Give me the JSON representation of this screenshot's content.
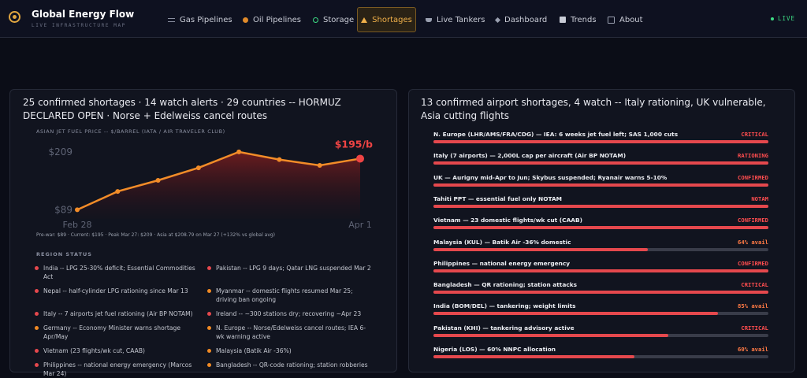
{
  "nav": {
    "brand": "Global Energy Flow",
    "tagline": "LIVE INFRASTRUCTURE MAP",
    "items": [
      "Gas Pipelines",
      "Oil Pipelines",
      "Storage",
      "Shortages",
      "Live Tankers",
      "Dashboard",
      "Trends",
      "About"
    ],
    "active": 3,
    "live": "LIVE"
  },
  "summary": "25 confirmed shortages · 14 watch alerts · 29 countries -- HORMUZ DECLARED OPEN · Norse + Edelweiss cancel routes",
  "chart_data": {
    "type": "line",
    "title": "ASIAN JET FUEL PRICE -- $/BARREL (IATA / AIR TRAVELER CLUB)",
    "categories": [
      "Feb 28",
      null,
      null,
      null,
      null,
      null,
      null,
      "Apr 1"
    ],
    "values": [
      89,
      127,
      150,
      176,
      209,
      193,
      181,
      195
    ],
    "value_labels": [
      null,
      null,
      null,
      null,
      null,
      null,
      null,
      "$195/b"
    ],
    "color": "#f28c28",
    "current_color": "#ef4444",
    "ylim": [
      70,
      230
    ],
    "yticks": [
      {
        "value": 89,
        "label": "$89"
      },
      {
        "value": 209,
        "label": "$209"
      }
    ],
    "grid": false,
    "note": "Pre-war: $89 · Current: $195 · Peak Mar 27: $209 · Asia at $208.79 on Mar 27 (+132% vs global avg)"
  },
  "region_status": {
    "title": "REGION STATUS",
    "colors": {
      "critical": "#e5484d",
      "warning": "#f08a24"
    },
    "items": [
      {
        "text": "India -- LPG 25-30% deficit; Essential Commodities Act",
        "level": "critical"
      },
      {
        "text": "Pakistan -- LPG 9 days; Qatar LNG suspended Mar 2",
        "level": "critical"
      },
      {
        "text": "Nepal -- half-cylinder LPG rationing since Mar 13",
        "level": "critical"
      },
      {
        "text": "Myanmar -- domestic flights resumed Mar 25; driving ban ongoing",
        "level": "warning"
      },
      {
        "text": "Italy -- 7 airports jet fuel rationing (Air BP NOTAM)",
        "level": "critical"
      },
      {
        "text": "Ireland -- ~300 stations dry; recovering ~Apr 23",
        "level": "critical"
      },
      {
        "text": "Germany -- Economy Minister warns shortage Apr/May",
        "level": "warning"
      },
      {
        "text": "N. Europe -- Norse/Edelweiss cancel routes; IEA 6-wk warning active",
        "level": "warning"
      },
      {
        "text": "Vietnam (23 flights/wk cut, CAAB)",
        "level": "critical"
      },
      {
        "text": "Malaysia (Batik Air -36%)",
        "level": "warning"
      },
      {
        "text": "Philippines -- national energy emergency (Marcos Mar 24)",
        "level": "critical"
      },
      {
        "text": "Bangladesh -- QR-code rationing; station robberies",
        "level": "warning"
      }
    ]
  },
  "airports": {
    "headline": "13 confirmed airport shortages, 4 watch -- Italy rationing, UK vulnerable, Asia cutting flights",
    "xlim": [
      0,
      100
    ],
    "bar_color": "#e5484d",
    "tones": {
      "alert": "#ff4d4f",
      "avail": "#ff7a45"
    },
    "rows": [
      {
        "name": "N. Europe (LHR/AMS/FRA/CDG) — IEA: 6 weeks jet fuel left; SAS 1,000 cuts",
        "status": "CRITICAL",
        "tone": "alert",
        "level": 100
      },
      {
        "name": "Italy (7 airports) — 2,000L cap per aircraft (Air BP NOTAM)",
        "status": "RATIONING",
        "tone": "alert",
        "level": 100
      },
      {
        "name": "UK — Aurigny mid-Apr to Jun; Skybus suspended; Ryanair warns 5-10%",
        "status": "CONFIRMED",
        "tone": "alert",
        "level": 100
      },
      {
        "name": "Tahiti PPT — essential fuel only NOTAM",
        "status": "NOTAM",
        "tone": "alert",
        "level": 100
      },
      {
        "name": "Vietnam — 23 domestic flights/wk cut (CAAB)",
        "status": "CONFIRMED",
        "tone": "alert",
        "level": 100
      },
      {
        "name": "Malaysia (KUL) — Batik Air -36% domestic",
        "status": "64% avail",
        "tone": "avail",
        "level": 64
      },
      {
        "name": "Philippines — national energy emergency",
        "status": "CONFIRMED",
        "tone": "alert",
        "level": 100
      },
      {
        "name": "Bangladesh — QR rationing; station attacks",
        "status": "CRITICAL",
        "tone": "alert",
        "level": 100
      },
      {
        "name": "India (BOM/DEL) — tankering; weight limits",
        "status": "85% avail",
        "tone": "avail",
        "level": 85
      },
      {
        "name": "Pakistan (KHI) — tankering advisory active",
        "status": "CRITICAL",
        "tone": "alert",
        "level": 70
      },
      {
        "name": "Nigeria (LOS) — 60% NNPC allocation",
        "status": "60% avail",
        "tone": "avail",
        "level": 60
      }
    ]
  }
}
